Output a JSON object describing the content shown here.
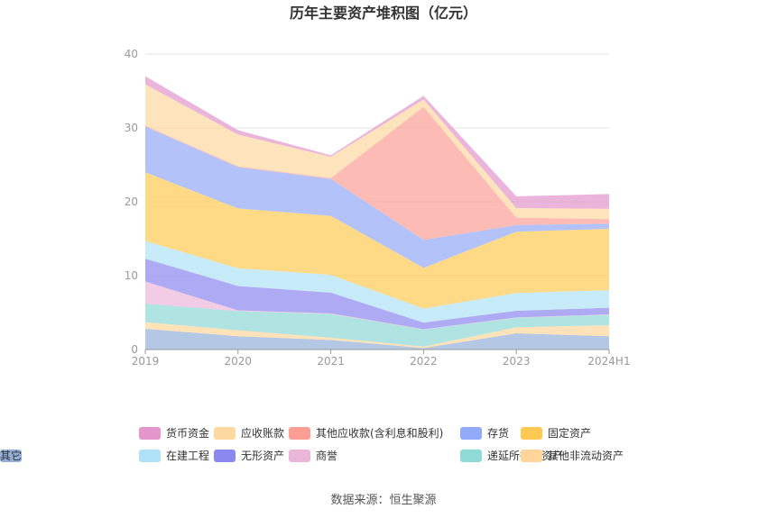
{
  "chart_data": {
    "type": "area",
    "stacked": true,
    "title": "历年主要资产堆积图（亿元）",
    "x": [
      "2019",
      "2020",
      "2021",
      "2022",
      "2023",
      "2024H1"
    ],
    "ylim": [
      0,
      40
    ],
    "yticks": [
      "0",
      "10",
      "20",
      "30",
      "40"
    ],
    "grid": true,
    "legend_position": "bottom",
    "series": [
      {
        "name": "其它",
        "color": "#94afd9",
        "values": [
          2.8,
          1.8,
          1.3,
          0.2,
          2.2,
          1.8
        ]
      },
      {
        "name": "其他非流动资产",
        "color": "#ffd59a",
        "values": [
          0.9,
          0.8,
          0.3,
          0.2,
          0.8,
          1.5
        ]
      },
      {
        "name": "递延所得税资产",
        "color": "#8fd9d6",
        "values": [
          2.5,
          2.6,
          3.2,
          2.3,
          1.3,
          1.4
        ]
      },
      {
        "name": "商誉",
        "color": "#ecb6da",
        "values": [
          3.0,
          0.1,
          0.1,
          0.05,
          0.05,
          0.05
        ]
      },
      {
        "name": "无形资产",
        "color": "#8b88f0",
        "values": [
          3.1,
          3.3,
          2.8,
          0.9,
          0.9,
          0.9
        ]
      },
      {
        "name": "在建工程",
        "color": "#afe2f7",
        "values": [
          2.4,
          2.4,
          2.4,
          1.9,
          2.4,
          2.4
        ]
      },
      {
        "name": "固定资产",
        "color": "#fdc953",
        "values": [
          9.3,
          8.1,
          8.0,
          5.5,
          8.3,
          8.3
        ]
      },
      {
        "name": "存货",
        "color": "#93aaf8",
        "values": [
          6.2,
          5.6,
          5.0,
          3.8,
          0.9,
          0.7
        ]
      },
      {
        "name": "其他应收款(含利息和股利)",
        "color": "#fc9e96",
        "values": [
          0.1,
          0.1,
          0.1,
          18.0,
          1.0,
          0.6
        ]
      },
      {
        "name": "应收账款",
        "color": "#fdd9a0",
        "values": [
          5.6,
          4.3,
          2.9,
          1.0,
          1.3,
          1.4
        ]
      },
      {
        "name": "货币资金",
        "color": "#e395cc",
        "values": [
          1.1,
          0.6,
          0.2,
          0.5,
          1.6,
          2.0
        ]
      }
    ]
  },
  "legend_order": [
    "货币资金",
    "应收账款",
    "其他应收款(含利息和股利)",
    "存货",
    "固定资产",
    "在建工程",
    "无形资产",
    "商誉",
    "递延所得税资产",
    "其他非流动资产",
    "其它"
  ],
  "source": "数据来源：恒生聚源"
}
